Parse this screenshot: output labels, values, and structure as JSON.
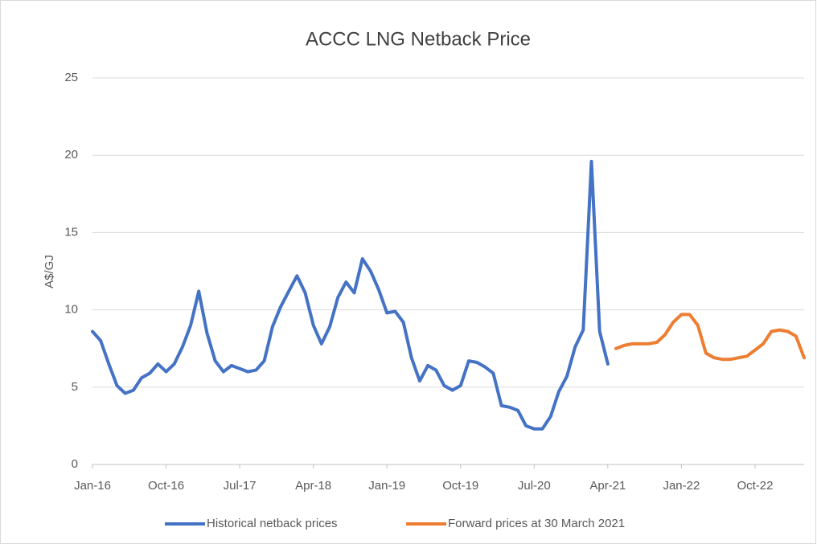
{
  "chart_data": {
    "type": "line",
    "title": "ACCC LNG Netback Price",
    "y_label": "A$/GJ",
    "categories": [
      "Jan-16",
      null,
      null,
      null,
      null,
      null,
      null,
      null,
      null,
      "Oct-16",
      null,
      null,
      null,
      null,
      null,
      null,
      null,
      null,
      "Jul-17",
      null,
      null,
      null,
      null,
      null,
      null,
      null,
      null,
      "Apr-18",
      null,
      null,
      null,
      null,
      null,
      null,
      null,
      null,
      "Jan-19",
      null,
      null,
      null,
      null,
      null,
      null,
      null,
      null,
      "Oct-19",
      null,
      null,
      null,
      null,
      null,
      null,
      null,
      null,
      "Jul-20",
      null,
      null,
      null,
      null,
      null,
      null,
      null,
      null,
      "Apr-21",
      null,
      null,
      null,
      null,
      null,
      null,
      null,
      null,
      "Jan-22",
      null,
      null,
      null,
      null,
      null,
      null,
      null,
      null,
      "Oct-22",
      null,
      null,
      null,
      null,
      null,
      null
    ],
    "series": [
      {
        "name": "Historical netback prices",
        "color": "#4472c4",
        "values": [
          8.6,
          8.0,
          6.5,
          5.1,
          4.6,
          4.8,
          5.6,
          5.9,
          6.5,
          6.0,
          6.5,
          7.6,
          9.0,
          11.2,
          8.5,
          6.7,
          6.0,
          6.4,
          6.2,
          6.0,
          6.1,
          6.7,
          8.9,
          10.2,
          11.2,
          12.2,
          11.1,
          9.0,
          7.8,
          8.9,
          10.8,
          11.8,
          11.1,
          13.3,
          12.5,
          11.3,
          9.8,
          9.9,
          9.2,
          6.9,
          5.4,
          6.4,
          6.1,
          5.1,
          4.8,
          5.1,
          6.7,
          6.6,
          6.3,
          5.9,
          3.8,
          3.7,
          3.5,
          2.5,
          2.3,
          2.3,
          3.1,
          4.7,
          5.7,
          7.6,
          8.7,
          19.6,
          8.6,
          6.5,
          null,
          null,
          null,
          null,
          null,
          null,
          null,
          null,
          null,
          null,
          null,
          null,
          null,
          null,
          null,
          null,
          null,
          null,
          null,
          null,
          null,
          null,
          null,
          null
        ]
      },
      {
        "name": "Forward prices at 30 March 2021",
        "color": "#ed7d31",
        "values": [
          null,
          null,
          null,
          null,
          null,
          null,
          null,
          null,
          null,
          null,
          null,
          null,
          null,
          null,
          null,
          null,
          null,
          null,
          null,
          null,
          null,
          null,
          null,
          null,
          null,
          null,
          null,
          null,
          null,
          null,
          null,
          null,
          null,
          null,
          null,
          null,
          null,
          null,
          null,
          null,
          null,
          null,
          null,
          null,
          null,
          null,
          null,
          null,
          null,
          null,
          null,
          null,
          null,
          null,
          null,
          null,
          null,
          null,
          null,
          null,
          null,
          null,
          null,
          null,
          7.5,
          7.7,
          7.8,
          7.8,
          7.8,
          7.9,
          8.4,
          9.2,
          9.7,
          9.7,
          9.0,
          7.2,
          6.9,
          6.8,
          6.8,
          6.9,
          7.0,
          7.4,
          7.8,
          8.6,
          8.7,
          8.6,
          8.3,
          6.9
        ]
      }
    ],
    "ylim": [
      0,
      25
    ],
    "yticks": [
      0,
      5,
      10,
      15,
      20,
      25
    ],
    "grid": true,
    "legend": "bottom"
  }
}
